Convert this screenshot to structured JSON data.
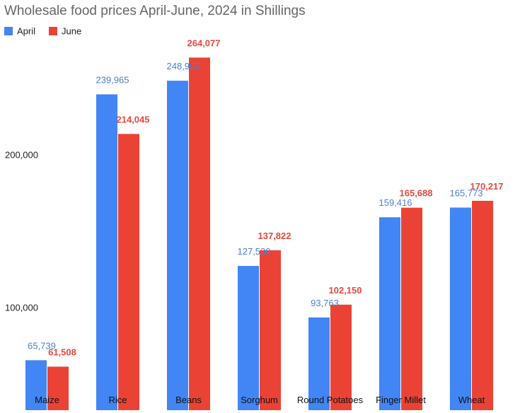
{
  "chart_data": {
    "type": "bar",
    "title": "Wholesale food prices April-June, 2024 in Shillings",
    "categories": [
      "Maize",
      "Rice",
      "Beans",
      "Sorghum",
      "Round Potatoes",
      "Finger Millet",
      "Wheat"
    ],
    "series": [
      {
        "name": "April",
        "color": "#4285f4",
        "label_color": "#4a7fd0",
        "values": [
          65739,
          239965,
          248905,
          127530,
          93763,
          159416,
          165773
        ]
      },
      {
        "name": "June",
        "color": "#ea4335",
        "label_color": "#e8483b",
        "values": [
          61508,
          214045,
          264077,
          137822,
          102150,
          165688,
          170217
        ]
      }
    ],
    "data_labels": {
      "April": [
        "65,739",
        "239,965",
        "248,905",
        "127,530",
        "93,763",
        "159,416",
        "165,773"
      ],
      "June": [
        "61,508",
        "214,045",
        "264,077",
        "137,822",
        "102,150",
        "165,688",
        "170,217"
      ]
    },
    "y_ticks": [
      {
        "value": 100000,
        "label": "100,000"
      },
      {
        "value": 200000,
        "label": "200,000"
      }
    ],
    "xlabel": "",
    "ylabel": "",
    "ylim": [
      33000,
      274000
    ],
    "grid": false,
    "legend": "top-left"
  }
}
